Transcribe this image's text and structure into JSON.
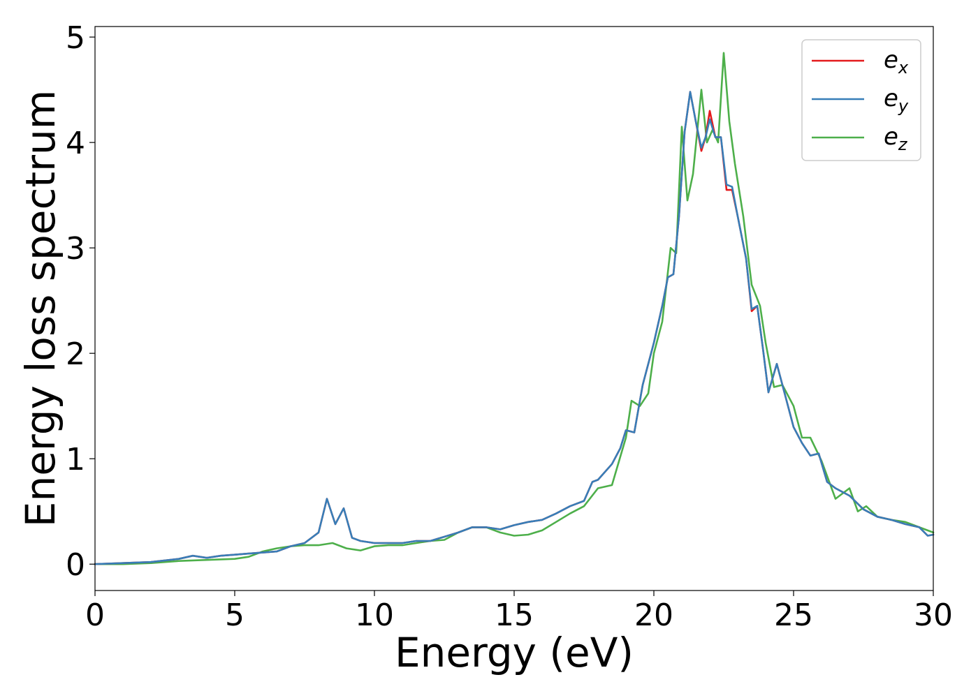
{
  "chart_data": {
    "type": "line",
    "xlabel": "Energy (eV)",
    "ylabel": "Energy loss spectrum",
    "xlim": [
      0,
      30
    ],
    "ylim": [
      -0.25,
      5.1
    ],
    "xticks": [
      0,
      5,
      10,
      15,
      20,
      25,
      30
    ],
    "yticks": [
      0,
      1,
      2,
      3,
      4,
      5
    ],
    "grid": false,
    "legend_position": "top-right",
    "series": [
      {
        "name": "e_x",
        "label_base": "e",
        "label_sub": "x",
        "color": "#e41a1c",
        "x": [
          0,
          1,
          2,
          3,
          3.5,
          4,
          4.5,
          5,
          5.5,
          6,
          6.5,
          7,
          7.5,
          8,
          8.3,
          8.6,
          8.9,
          9.2,
          9.5,
          10,
          10.5,
          11,
          11.5,
          12,
          12.5,
          13,
          13.5,
          14,
          14.5,
          15,
          15.5,
          16,
          16.5,
          17,
          17.5,
          17.8,
          18,
          18.5,
          18.8,
          19,
          19.3,
          19.6,
          20,
          20.3,
          20.5,
          20.7,
          20.9,
          21.1,
          21.3,
          21.5,
          21.7,
          21.85,
          22,
          22.2,
          22.4,
          22.6,
          22.8,
          23,
          23.3,
          23.5,
          23.7,
          23.9,
          24.1,
          24.4,
          24.7,
          25,
          25.3,
          25.6,
          25.9,
          26.2,
          26.5,
          27,
          27.5,
          28,
          28.5,
          29,
          29.5,
          29.8,
          30
        ],
        "y": [
          0,
          0.01,
          0.02,
          0.05,
          0.08,
          0.06,
          0.08,
          0.09,
          0.1,
          0.11,
          0.12,
          0.17,
          0.2,
          0.3,
          0.62,
          0.38,
          0.53,
          0.25,
          0.22,
          0.2,
          0.2,
          0.2,
          0.22,
          0.22,
          0.26,
          0.3,
          0.35,
          0.35,
          0.33,
          0.37,
          0.4,
          0.42,
          0.48,
          0.55,
          0.6,
          0.78,
          0.8,
          0.95,
          1.1,
          1.27,
          1.25,
          1.7,
          2.1,
          2.45,
          2.72,
          2.75,
          3.3,
          4.1,
          4.48,
          4.2,
          3.92,
          4.05,
          4.3,
          4.05,
          4.05,
          3.55,
          3.55,
          3.3,
          2.9,
          2.4,
          2.45,
          2.05,
          1.63,
          1.9,
          1.6,
          1.3,
          1.15,
          1.03,
          1.05,
          0.78,
          0.72,
          0.65,
          0.52,
          0.45,
          0.42,
          0.38,
          0.35,
          0.27,
          0.28
        ]
      },
      {
        "name": "e_y",
        "label_base": "e",
        "label_sub": "y",
        "color": "#377eb8",
        "x": [
          0,
          1,
          2,
          3,
          3.5,
          4,
          4.5,
          5,
          5.5,
          6,
          6.5,
          7,
          7.5,
          8,
          8.3,
          8.6,
          8.9,
          9.2,
          9.5,
          10,
          10.5,
          11,
          11.5,
          12,
          12.5,
          13,
          13.5,
          14,
          14.5,
          15,
          15.5,
          16,
          16.5,
          17,
          17.5,
          17.8,
          18,
          18.5,
          18.8,
          19,
          19.3,
          19.6,
          20,
          20.3,
          20.5,
          20.7,
          20.9,
          21.1,
          21.3,
          21.5,
          21.7,
          21.85,
          22,
          22.2,
          22.4,
          22.6,
          22.8,
          23,
          23.3,
          23.5,
          23.7,
          23.9,
          24.1,
          24.4,
          24.7,
          25,
          25.3,
          25.6,
          25.9,
          26.2,
          26.5,
          27,
          27.5,
          28,
          28.5,
          29,
          29.5,
          29.8,
          30
        ],
        "y": [
          0,
          0.01,
          0.02,
          0.05,
          0.08,
          0.06,
          0.08,
          0.09,
          0.1,
          0.11,
          0.12,
          0.17,
          0.2,
          0.3,
          0.62,
          0.38,
          0.53,
          0.25,
          0.22,
          0.2,
          0.2,
          0.2,
          0.22,
          0.22,
          0.26,
          0.3,
          0.35,
          0.35,
          0.33,
          0.37,
          0.4,
          0.42,
          0.48,
          0.55,
          0.6,
          0.78,
          0.8,
          0.95,
          1.1,
          1.27,
          1.25,
          1.7,
          2.1,
          2.45,
          2.72,
          2.75,
          3.3,
          4.1,
          4.48,
          4.2,
          3.95,
          4.05,
          4.22,
          4.05,
          4.05,
          3.6,
          3.58,
          3.3,
          2.9,
          2.42,
          2.45,
          2.05,
          1.63,
          1.9,
          1.6,
          1.3,
          1.15,
          1.03,
          1.05,
          0.78,
          0.72,
          0.65,
          0.52,
          0.45,
          0.42,
          0.38,
          0.35,
          0.27,
          0.28
        ]
      },
      {
        "name": "e_z",
        "label_base": "e",
        "label_sub": "z",
        "color": "#4daf4a",
        "x": [
          0,
          1,
          2,
          3,
          4,
          5,
          5.5,
          6,
          6.5,
          7,
          7.5,
          8,
          8.5,
          9,
          9.5,
          10,
          10.5,
          11,
          11.5,
          12,
          12.5,
          13,
          13.5,
          14,
          14.5,
          15,
          15.5,
          16,
          16.5,
          17,
          17.5,
          18,
          18.5,
          19,
          19.2,
          19.5,
          19.8,
          20,
          20.3,
          20.6,
          20.8,
          21,
          21.2,
          21.4,
          21.7,
          21.9,
          22.1,
          22.3,
          22.5,
          22.7,
          22.9,
          23.2,
          23.5,
          23.8,
          24,
          24.3,
          24.6,
          25,
          25.3,
          25.6,
          26,
          26.5,
          27,
          27.3,
          27.6,
          28,
          28.5,
          29,
          29.5,
          30
        ],
        "y": [
          0,
          0,
          0.01,
          0.03,
          0.04,
          0.05,
          0.07,
          0.12,
          0.15,
          0.17,
          0.18,
          0.18,
          0.2,
          0.15,
          0.13,
          0.17,
          0.18,
          0.18,
          0.2,
          0.22,
          0.23,
          0.3,
          0.35,
          0.35,
          0.3,
          0.27,
          0.28,
          0.32,
          0.4,
          0.48,
          0.55,
          0.72,
          0.75,
          1.2,
          1.55,
          1.5,
          1.62,
          2.0,
          2.3,
          3.0,
          2.95,
          4.15,
          3.45,
          3.7,
          4.5,
          4.0,
          4.12,
          4.0,
          4.85,
          4.2,
          3.8,
          3.3,
          2.65,
          2.45,
          2.1,
          1.68,
          1.7,
          1.5,
          1.2,
          1.2,
          0.98,
          0.62,
          0.72,
          0.5,
          0.55,
          0.45,
          0.42,
          0.4,
          0.35,
          0.3
        ]
      }
    ]
  }
}
